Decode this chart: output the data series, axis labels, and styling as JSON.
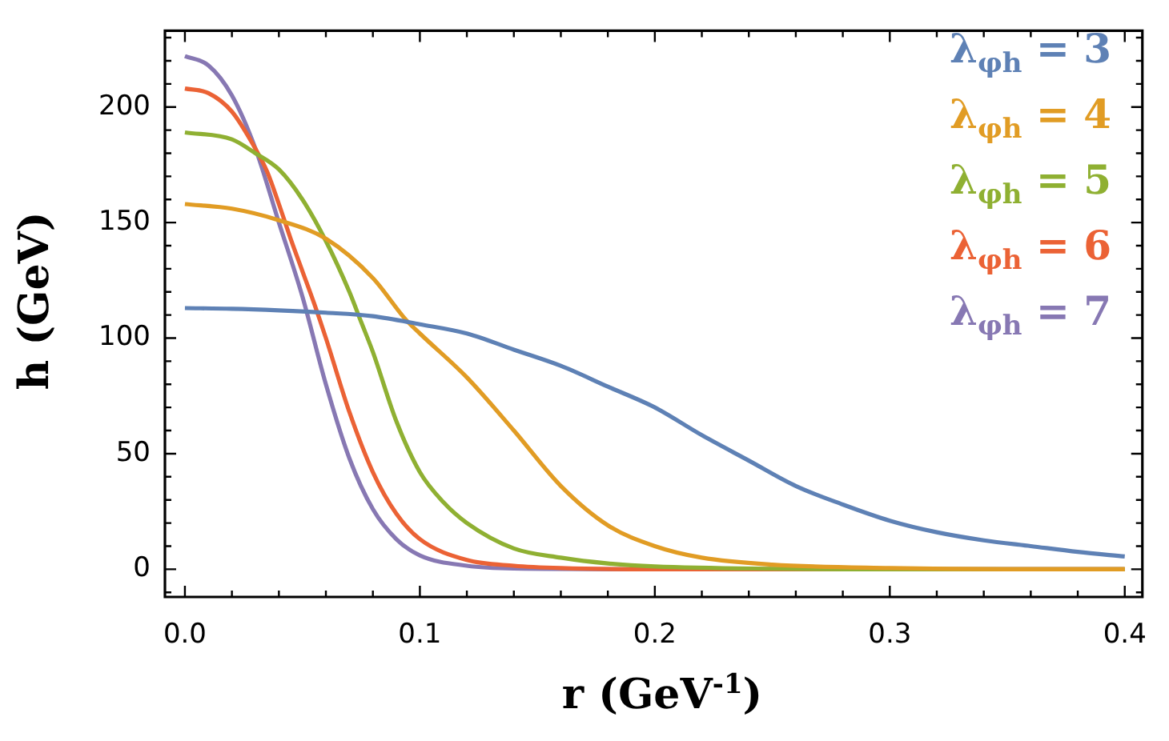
{
  "chart_data": {
    "type": "line",
    "xlabel": "r (GeV$^{-1}$)",
    "ylabel": "h (GeV)",
    "xlim": [
      -0.0085,
      0.4075
    ],
    "ylim": [
      -12,
      233
    ],
    "xticks": [
      {
        "value": 0,
        "label": "0.0"
      },
      {
        "value": 0.02,
        "label": null
      },
      {
        "value": 0.04,
        "label": null
      },
      {
        "value": 0.06,
        "label": null
      },
      {
        "value": 0.08,
        "label": null
      },
      0.1,
      {
        "value": 0.12,
        "label": null
      },
      {
        "value": 0.14,
        "label": null
      },
      {
        "value": 0.16,
        "label": null
      },
      {
        "value": 0.18,
        "label": null
      },
      0.2,
      {
        "value": 0.22,
        "label": null
      },
      {
        "value": 0.24,
        "label": null
      },
      {
        "value": 0.26,
        "label": null
      },
      {
        "value": 0.28,
        "label": null
      },
      0.3,
      {
        "value": 0.32,
        "label": null
      },
      {
        "value": 0.34,
        "label": null
      },
      {
        "value": 0.36,
        "label": null
      },
      {
        "value": 0.38,
        "label": null
      },
      0.4
    ],
    "yticks": [
      {
        "value": -10,
        "label": null
      },
      0,
      {
        "value": 10,
        "label": null
      },
      {
        "value": 20,
        "label": null
      },
      {
        "value": 30,
        "label": null
      },
      {
        "value": 40,
        "label": null
      },
      50,
      {
        "value": 60,
        "label": null
      },
      {
        "value": 70,
        "label": null
      },
      {
        "value": 80,
        "label": null
      },
      {
        "value": 90,
        "label": null
      },
      100,
      {
        "value": 110,
        "label": null
      },
      {
        "value": 120,
        "label": null
      },
      {
        "value": 130,
        "label": null
      },
      {
        "value": 140,
        "label": null
      },
      150,
      {
        "value": 160,
        "label": null
      },
      {
        "value": 170,
        "label": null
      },
      {
        "value": 180,
        "label": null
      },
      {
        "value": 190,
        "label": null
      },
      200,
      {
        "value": 210,
        "label": null
      },
      {
        "value": 220,
        "label": null
      },
      {
        "value": 230,
        "label": null
      }
    ],
    "grid": false,
    "legend": "top right",
    "marker": "none",
    "line_style": "solid",
    "series": [
      {
        "name": "λ$_{φh}$ = 3",
        "color": "#5e81b5",
        "x": [
          0,
          0.02,
          0.04,
          0.06,
          0.08,
          0.1,
          0.12,
          0.14,
          0.16,
          0.18,
          0.2,
          0.22,
          0.24,
          0.26,
          0.28,
          0.3,
          0.32,
          0.34,
          0.36,
          0.38,
          0.4
        ],
        "values": [
          113,
          112.7,
          112,
          111,
          109.5,
          106,
          102,
          95,
          88,
          79,
          70,
          58,
          47,
          36,
          28,
          21,
          16,
          12.5,
          10,
          7.5,
          5.5
        ]
      },
      {
        "name": "λ$_{φh}$ = 4",
        "color": "#e19c24",
        "x": [
          0,
          0.02,
          0.04,
          0.06,
          0.08,
          0.094,
          0.1,
          0.12,
          0.14,
          0.16,
          0.18,
          0.2,
          0.22,
          0.25,
          0.3,
          0.35,
          0.4
        ],
        "values": [
          158,
          156,
          151,
          143,
          126,
          108,
          102,
          83,
          60,
          36,
          19,
          10,
          5,
          2,
          0.5,
          0,
          0
        ]
      },
      {
        "name": "λ$_{φh}$ = 5",
        "color": "#8fb032",
        "x": [
          0,
          0.02,
          0.03,
          0.04,
          0.05,
          0.06,
          0.07,
          0.075,
          0.08,
          0.09,
          0.1,
          0.11,
          0.12,
          0.14,
          0.16,
          0.18,
          0.2,
          0.25,
          0.3,
          0.4
        ],
        "values": [
          189,
          186,
          180,
          173,
          160,
          142,
          120,
          107,
          94,
          64,
          42,
          29,
          20,
          9,
          5,
          2.5,
          1.2,
          0.2,
          0,
          0
        ]
      },
      {
        "name": "λ$_{φh}$ = 6",
        "color": "#eb6235",
        "x": [
          0,
          0.01,
          0.02,
          0.03,
          0.035,
          0.04,
          0.045,
          0.05,
          0.055,
          0.06,
          0.07,
          0.08,
          0.09,
          0.1,
          0.12,
          0.14,
          0.16,
          0.2,
          0.3,
          0.4
        ],
        "values": [
          208,
          206,
          198,
          182,
          172,
          158,
          143,
          129,
          115,
          100,
          68,
          42,
          24,
          13,
          4,
          1.5,
          0.5,
          0,
          0,
          0
        ]
      },
      {
        "name": "λ$_{φh}$ = 7",
        "color": "#8778b3",
        "x": [
          0,
          0.01,
          0.02,
          0.03,
          0.04,
          0.05,
          0.06,
          0.07,
          0.08,
          0.09,
          0.1,
          0.12,
          0.14,
          0.2,
          0.3,
          0.4
        ],
        "values": [
          222,
          218,
          205,
          182,
          150,
          118,
          80,
          48,
          26,
          13,
          6,
          1.5,
          0.3,
          0,
          0,
          0
        ]
      }
    ]
  }
}
